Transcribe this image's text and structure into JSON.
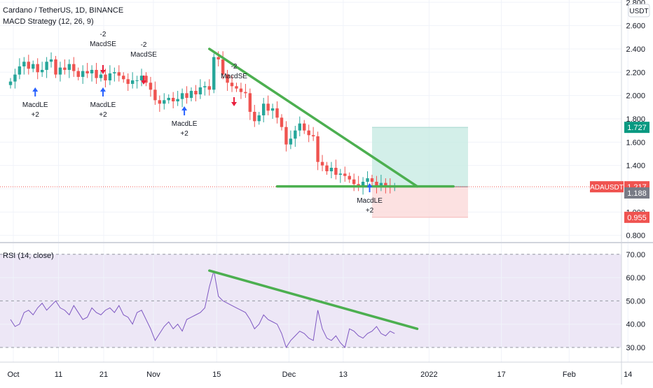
{
  "header": {
    "symbol_title": "Cardano / TetherUS, 1D, BINANCE",
    "strategy_label": "MACD Strategy (12, 26, 9)",
    "currency_badge": "USDT"
  },
  "rsi_panel": {
    "label": "RSI (14, close)"
  },
  "colors": {
    "up": "#26a69a",
    "down": "#ef5350",
    "trendline": "#4caf50",
    "rsi_line": "#7e57c2",
    "rsi_band": "#ede7f6",
    "profit_zone": "#c8ebe4",
    "loss_zone": "#fbd9d9",
    "long_arrow": "#2962ff",
    "short_arrow": "#e91e3c"
  },
  "chart_data": [
    {
      "type": "candlestick",
      "title": "Cardano / TetherUS, 1D, BINANCE",
      "x_tick_labels": [
        "Oct",
        "11",
        "21",
        "Nov",
        "15",
        "Dec",
        "13",
        "2022",
        "17",
        "Feb",
        "14"
      ],
      "y_tick_labels": [
        "2.800",
        "2.600",
        "2.400",
        "2.200",
        "2.000",
        "1.800",
        "1.600",
        "1.400",
        "1.200",
        "1.000",
        "0.800"
      ],
      "ylim": [
        0.78,
        2.82
      ],
      "close": [
        2.12,
        2.18,
        2.25,
        2.29,
        2.23,
        2.27,
        2.2,
        2.22,
        2.29,
        2.31,
        2.18,
        2.24,
        2.22,
        2.27,
        2.21,
        2.16,
        2.21,
        2.19,
        2.22,
        2.15,
        2.18,
        2.13,
        2.19,
        2.2,
        2.17,
        2.14,
        2.1,
        2.13,
        2.13,
        2.17,
        2.11,
        2.05,
        1.96,
        1.93,
        1.96,
        1.98,
        1.95,
        1.97,
        2.02,
        1.98,
        2.04,
        2.01,
        2.07,
        2.08,
        2.05,
        2.33,
        2.31,
        2.18,
        2.11,
        2.08,
        2.06,
        2.03,
        2.02,
        1.86,
        1.78,
        1.83,
        1.93,
        1.87,
        1.89,
        1.81,
        1.73,
        1.58,
        1.63,
        1.7,
        1.76,
        1.7,
        1.66,
        1.65,
        1.43,
        1.4,
        1.35,
        1.38,
        1.32,
        1.33,
        1.31,
        1.28,
        1.24,
        1.22,
        1.26,
        1.29,
        1.26,
        1.22,
        1.25,
        1.23,
        1.21,
        1.22
      ],
      "x_positions": [
        "Oct-1 … Dec-25 daily candles (86)"
      ],
      "trendlines": [
        {
          "name": "falling resistance",
          "from": {
            "day": 44,
            "value": 2.4
          },
          "to": {
            "day": 90,
            "value": 1.22
          }
        },
        {
          "name": "support",
          "from": {
            "day": 59,
            "value": 1.22
          },
          "to": {
            "day": 98,
            "value": 1.22
          }
        }
      ],
      "position_tool": {
        "entry": 1.217,
        "target": 1.727,
        "stop": 0.955
      },
      "price_labels": [
        {
          "label": "1.727",
          "value": 1.727
        },
        {
          "label": "ADAUSDT",
          "price": "1.217",
          "value": 1.217
        },
        {
          "label": "1.188",
          "value": 1.188
        },
        {
          "label": "0.955",
          "value": 0.955
        }
      ],
      "signals": [
        {
          "side": "long",
          "text1": "MacdLE",
          "text2": "+2",
          "day": 5
        },
        {
          "side": "short",
          "text1": "-2",
          "text2": "MacdSE",
          "day": 20
        },
        {
          "side": "long",
          "text1": "MacdLE",
          "text2": "+2",
          "day": 20
        },
        {
          "side": "short",
          "text1": "-2",
          "text2": "MacdSE",
          "day": 29
        },
        {
          "side": "long",
          "text1": "MacdLE",
          "text2": "+2",
          "day": 38
        },
        {
          "side": "short",
          "text1": "-2",
          "text2": "MacdSE",
          "day": 49
        },
        {
          "side": "long",
          "text1": "MacdLE",
          "text2": "+2",
          "day": 79
        }
      ]
    },
    {
      "type": "line",
      "title": "RSI (14, close)",
      "y_tick_labels": [
        "70.00",
        "60.00",
        "50.00",
        "40.00",
        "30.00"
      ],
      "ylim": [
        25,
        73
      ],
      "levels": [
        70,
        50,
        30
      ],
      "values": [
        42,
        39,
        40,
        45,
        46,
        44,
        47,
        49,
        46,
        48,
        50,
        47,
        46,
        44,
        48,
        45,
        42,
        43,
        47,
        45,
        44,
        46,
        47,
        45,
        48,
        44,
        43,
        40,
        45,
        46,
        42,
        38,
        33,
        36,
        39,
        41,
        38,
        40,
        37,
        42,
        43,
        44,
        45,
        47,
        56,
        63,
        52,
        50,
        49,
        48,
        47,
        46,
        45,
        42,
        38,
        40,
        44,
        42,
        41,
        40,
        36,
        30,
        33,
        35,
        37,
        36,
        34,
        33,
        46,
        38,
        34,
        33,
        35,
        32,
        30,
        38,
        37,
        35,
        34,
        36,
        37,
        39,
        36,
        35,
        37,
        36
      ],
      "trendline": {
        "from": {
          "day": 44,
          "value": 63
        },
        "to": {
          "day": 90,
          "value": 38
        }
      }
    }
  ]
}
